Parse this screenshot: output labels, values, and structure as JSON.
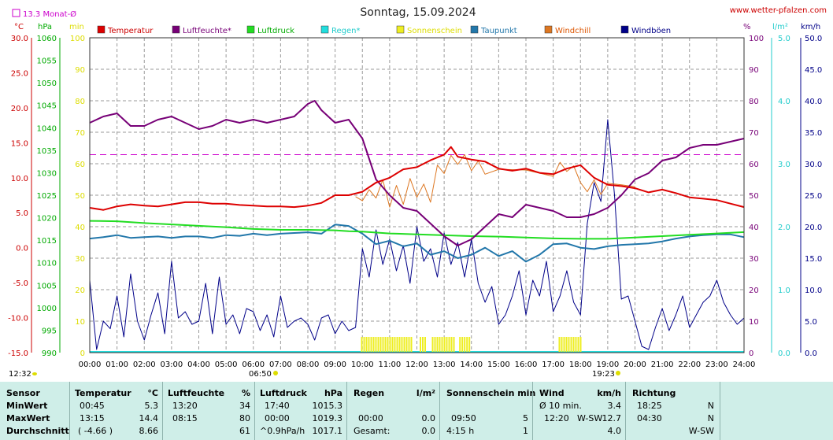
{
  "title": "Sonntag, 15.09.2024",
  "site": "www.wetter-pfalzen.com",
  "avg_label": "13.3 Monat-Ø",
  "units": {
    "temp": "°C",
    "pressure": "hPa",
    "sunshine": "min",
    "humidity": "%",
    "rain": "l/m²",
    "wind": "km/h"
  },
  "left_axes": {
    "temp": [
      "30.0",
      "25.0",
      "20.0",
      "15.0",
      "10.0",
      "5.0",
      "0.0",
      "-5.0",
      "-10.0",
      "-15.0"
    ],
    "pressure": [
      "1060",
      "1055",
      "1050",
      "1045",
      "1040",
      "1035",
      "1030",
      "1025",
      "1020",
      "1015",
      "1010",
      "1005",
      "1000",
      "995",
      "990"
    ],
    "sunshine": [
      "100",
      "90",
      "80",
      "70",
      "60",
      "50",
      "40",
      "30",
      "20",
      "10",
      "0"
    ]
  },
  "right_axes": {
    "humidity": [
      "100",
      "90",
      "80",
      "70",
      "60",
      "50",
      "40",
      "30",
      "20",
      "10",
      "0"
    ],
    "rain": [
      "5.0",
      "4.0",
      "3.0",
      "2.0",
      "1.0",
      "0.0"
    ],
    "wind": [
      "50.0",
      "45.0",
      "40.0",
      "35.0",
      "30.0",
      "25.0",
      "20.0",
      "15.0",
      "10.0",
      "5.0",
      "0.0"
    ]
  },
  "x_ticks": [
    "00:00",
    "01:00",
    "02:00",
    "03:00",
    "04:00",
    "05:00",
    "06:00",
    "07:00",
    "08:00",
    "09:00",
    "10:00",
    "11:00",
    "12:00",
    "13:00",
    "14:00",
    "15:00",
    "16:00",
    "17:00",
    "18:00",
    "19:00",
    "20:00",
    "21:00",
    "22:00",
    "23:00",
    "24:00"
  ],
  "sun_times": {
    "moonset": "12:32",
    "sunrise": "06:50",
    "sunset": "19:23"
  },
  "legend": [
    {
      "label": "Temperatur",
      "color": "#dd0000",
      "text_color": "#cc0000"
    },
    {
      "label": "Luftfeuchte*",
      "color": "#770077",
      "text_color": "#770077"
    },
    {
      "label": "Luftdruck",
      "color": "#22dd22",
      "text_color": "#00aa00"
    },
    {
      "label": "Regen*",
      "color": "#22dddd",
      "text_color": "#22cccc"
    },
    {
      "label": "Sonnenschein",
      "color": "#eeee22",
      "text_color": "#dddd00"
    },
    {
      "label": "Taupunkt",
      "color": "#2277aa",
      "text_color": "#2277aa"
    },
    {
      "label": "Windchill",
      "color": "#dd7722",
      "text_color": "#dd5500"
    },
    {
      "label": "Windböen",
      "color": "#000088",
      "text_color": "#000088"
    }
  ],
  "chart_data": {
    "type": "line",
    "x_unit": "hour",
    "x_range": [
      0,
      24
    ],
    "month_avg_temp": 13.3,
    "temp_axis": [
      -15,
      30
    ],
    "pressure_axis": [
      990,
      1060
    ],
    "humidity_axis": [
      0,
      100
    ],
    "wind_axis": [
      0,
      50
    ],
    "series": [
      {
        "name": "Temperatur",
        "unit": "°C",
        "color": "#dd0000",
        "x": [
          0,
          0.5,
          1,
          1.5,
          2,
          2.5,
          3,
          3.5,
          4,
          4.5,
          5,
          5.5,
          6,
          6.5,
          7,
          7.5,
          8,
          8.5,
          9,
          9.5,
          10,
          10.5,
          11,
          11.5,
          12,
          12.5,
          13,
          13.25,
          13.5,
          14,
          14.5,
          15,
          15.5,
          16,
          16.5,
          17,
          17.5,
          18,
          18.5,
          19,
          19.5,
          20,
          20.5,
          21,
          21.5,
          22,
          22.5,
          23,
          23.5,
          24
        ],
        "values": [
          5.7,
          5.4,
          5.9,
          6.2,
          6.0,
          5.9,
          6.2,
          6.5,
          6.5,
          6.3,
          6.3,
          6.1,
          6.0,
          5.9,
          5.9,
          5.8,
          6.0,
          6.4,
          7.5,
          7.5,
          8.0,
          9.3,
          10.0,
          11.2,
          11.5,
          12.5,
          13.3,
          14.4,
          13.0,
          12.6,
          12.3,
          11.3,
          11.0,
          11.3,
          10.7,
          10.5,
          11.3,
          11.8,
          10.0,
          9.0,
          8.8,
          8.5,
          7.9,
          8.3,
          7.8,
          7.2,
          7.0,
          6.8,
          6.3,
          5.8
        ]
      },
      {
        "name": "Luftfeuchte*",
        "unit": "%",
        "color": "#770077",
        "x": [
          0,
          0.5,
          1,
          1.5,
          2,
          2.5,
          3,
          3.5,
          4,
          4.5,
          5,
          5.5,
          6,
          6.5,
          7,
          7.5,
          8,
          8.25,
          8.5,
          9,
          9.5,
          10,
          10.5,
          11,
          11.5,
          12,
          12.5,
          13,
          13.5,
          14,
          14.5,
          15,
          15.5,
          16,
          16.5,
          17,
          17.5,
          18,
          18.5,
          19,
          19.5,
          20,
          20.5,
          21,
          21.5,
          22,
          22.5,
          23,
          23.5,
          24
        ],
        "values": [
          73,
          75,
          76,
          72,
          72,
          74,
          75,
          73,
          71,
          72,
          74,
          73,
          74,
          73,
          74,
          75,
          79,
          80,
          77,
          73,
          74,
          68,
          55,
          50,
          46,
          45,
          41,
          37,
          34,
          36,
          40,
          44,
          43,
          47,
          46,
          45,
          43,
          43,
          44,
          46,
          50,
          55,
          57,
          61,
          62,
          65,
          66,
          66,
          67,
          68
        ]
      },
      {
        "name": "Luftdruck",
        "unit": "hPa",
        "color": "#22dd22",
        "x": [
          0,
          1,
          2,
          3,
          4,
          5,
          6,
          7,
          8,
          9,
          9.5,
          10,
          11,
          12,
          13,
          14,
          15,
          16,
          17,
          18,
          19,
          20,
          21,
          22,
          23,
          24
        ],
        "values": [
          1019.3,
          1019.2,
          1018.8,
          1018.5,
          1018.2,
          1017.9,
          1017.5,
          1017.3,
          1017.3,
          1017.2,
          1017.0,
          1016.9,
          1016.5,
          1016.3,
          1016.1,
          1015.9,
          1015.8,
          1015.6,
          1015.4,
          1015.3,
          1015.3,
          1015.6,
          1015.9,
          1016.2,
          1016.5,
          1016.8
        ]
      },
      {
        "name": "Taupunkt",
        "unit": "°C",
        "color": "#2277aa",
        "x": [
          0,
          0.5,
          1,
          1.5,
          2,
          2.5,
          3,
          3.5,
          4,
          4.5,
          5,
          5.5,
          6,
          6.5,
          7,
          7.5,
          8,
          8.5,
          9,
          9.5,
          10,
          10.5,
          11,
          11.5,
          12,
          12.5,
          13,
          13.5,
          14,
          14.5,
          15,
          15.5,
          16,
          16.5,
          17,
          17.5,
          18,
          18.5,
          19,
          19.5,
          20,
          20.5,
          21,
          21.5,
          22,
          22.5,
          23,
          23.5,
          24
        ],
        "values": [
          1.3,
          1.5,
          1.8,
          1.4,
          1.5,
          1.6,
          1.4,
          1.6,
          1.6,
          1.4,
          1.8,
          1.7,
          2.0,
          1.8,
          2.0,
          2.1,
          2.2,
          2.0,
          3.3,
          3.1,
          2.0,
          0.5,
          1.0,
          0.2,
          0.6,
          -1.0,
          -0.5,
          -1.5,
          -1.0,
          0.0,
          -1.2,
          -0.5,
          -2.0,
          -1.0,
          0.5,
          0.6,
          0.0,
          -0.2,
          0.2,
          0.4,
          0.5,
          0.6,
          0.9,
          1.3,
          1.6,
          1.8,
          1.9,
          1.9,
          1.5
        ]
      },
      {
        "name": "Windchill",
        "unit": "°C",
        "color": "#dd7722",
        "x": [
          9.75,
          10,
          10.25,
          10.5,
          10.75,
          11,
          11.25,
          11.5,
          11.75,
          12,
          12.25,
          12.5,
          12.75,
          13,
          13.25,
          13.5,
          13.75,
          14,
          14.25,
          14.5,
          15,
          16,
          17,
          17.25,
          17.5,
          17.75,
          18,
          18.25,
          18.5,
          18.75,
          19,
          19.5,
          20
        ],
        "values": [
          7.3,
          6.7,
          8.3,
          7.1,
          9.7,
          5.8,
          8.9,
          6.2,
          9.9,
          7.2,
          9.1,
          6.5,
          11.8,
          10.6,
          13.2,
          11.9,
          13.3,
          11.0,
          12.4,
          10.5,
          11.2,
          11.1,
          10.2,
          12.2,
          10.9,
          11.7,
          9.3,
          8.0,
          9.7,
          7.6,
          9.2,
          9.0,
          8.7
        ]
      },
      {
        "name": "Windböen",
        "unit": "km/h",
        "color": "#000088",
        "x": [
          0,
          0.25,
          0.5,
          0.75,
          1,
          1.25,
          1.5,
          1.75,
          2,
          2.25,
          2.5,
          2.75,
          3,
          3.25,
          3.5,
          3.75,
          4,
          4.25,
          4.5,
          4.75,
          5,
          5.25,
          5.5,
          5.75,
          6,
          6.25,
          6.5,
          6.75,
          7,
          7.25,
          7.5,
          7.75,
          8,
          8.25,
          8.5,
          8.75,
          9,
          9.25,
          9.5,
          9.75,
          10,
          10.25,
          10.5,
          10.75,
          11,
          11.25,
          11.5,
          11.75,
          12,
          12.25,
          12.5,
          12.75,
          13,
          13.25,
          13.5,
          13.75,
          14,
          14.25,
          14.5,
          14.75,
          15,
          15.25,
          15.5,
          15.75,
          16,
          16.25,
          16.5,
          16.75,
          17,
          17.25,
          17.5,
          17.75,
          18,
          18.25,
          18.5,
          18.75,
          19,
          19.25,
          19.5,
          19.75,
          20,
          20.25,
          20.5,
          20.75,
          21,
          21.25,
          21.5,
          21.75,
          22,
          22.25,
          22.5,
          22.75,
          23,
          23.25,
          23.5,
          23.75,
          24
        ],
        "values": [
          11.5,
          0.5,
          5.0,
          3.8,
          9.0,
          2.5,
          12.5,
          5.0,
          2.0,
          6.0,
          9.5,
          3.0,
          14.5,
          5.5,
          6.5,
          4.5,
          5.0,
          11.0,
          3.0,
          12.0,
          4.5,
          6.0,
          3.0,
          7.0,
          6.5,
          3.5,
          6.0,
          2.5,
          9.0,
          4.0,
          5.0,
          5.5,
          4.5,
          2.0,
          5.5,
          6.0,
          3.0,
          5.0,
          3.5,
          4.0,
          16.5,
          12.0,
          19.5,
          14.0,
          18.0,
          13.0,
          17.0,
          11.0,
          20.0,
          14.5,
          16.5,
          12.0,
          19.0,
          14.0,
          17.5,
          12.0,
          18.0,
          11.0,
          8.0,
          10.5,
          4.5,
          6.0,
          9.0,
          13.0,
          6.0,
          11.5,
          9.0,
          14.5,
          6.5,
          9.0,
          13.0,
          8.0,
          6.0,
          20.5,
          27.0,
          24.0,
          37.0,
          25.0,
          8.5,
          9.0,
          5.0,
          1.0,
          0.5,
          4.0,
          7.0,
          3.5,
          6.0,
          9.0,
          4.0,
          6.0,
          8.0,
          9.0,
          11.5,
          8.0,
          6.0,
          4.5,
          5.5
        ]
      },
      {
        "name": "Sonnenschein",
        "unit": "min",
        "color": "#eeee22",
        "intervals": [
          [
            9.95,
            11.8
          ],
          [
            12.1,
            12.35
          ],
          [
            12.55,
            13.4
          ],
          [
            13.55,
            13.95
          ],
          [
            17.2,
            18.05
          ]
        ],
        "value": 5
      }
    ]
  },
  "stats": {
    "sensor": {
      "header": "Sensor",
      "rows": [
        "MinWert",
        "MaxWert",
        "Durchschnitt"
      ]
    },
    "temperature": {
      "header": "Temperatur",
      "unit": "°C",
      "rows": [
        [
          "00:45",
          "5.3"
        ],
        [
          "13:15",
          "14.4"
        ],
        [
          "( -4.66 )",
          "8.66"
        ]
      ]
    },
    "humidity": {
      "header": "Luftfeuchte",
      "unit": "%",
      "rows": [
        [
          "13:20",
          "34"
        ],
        [
          "08:15",
          "80"
        ],
        [
          "",
          "61"
        ]
      ]
    },
    "pressure": {
      "header": "Luftdruck",
      "unit": "hPa",
      "rows": [
        [
          "17:40",
          "1015.3"
        ],
        [
          "00:00",
          "1019.3"
        ],
        [
          "^0.9hPa/h",
          "1017.1"
        ]
      ]
    },
    "rain": {
      "header": "Regen",
      "unit": "l/m²",
      "rows": [
        [
          "",
          ""
        ],
        [
          "00:00",
          "0.0"
        ],
        [
          "Gesamt:",
          "0.0"
        ]
      ]
    },
    "sunshine": {
      "header": "Sonnenschein min",
      "unit": "",
      "rows": [
        [
          "",
          ""
        ],
        [
          "09:50",
          "5"
        ],
        [
          "4:15 h",
          "1"
        ]
      ]
    },
    "wind": {
      "header": "Wind",
      "unit": "km/h",
      "rows": [
        [
          "Ø 10 min.",
          "",
          "3.4"
        ],
        [
          "12:20",
          "W-SW",
          "12.7"
        ],
        [
          "",
          "",
          "4.0"
        ]
      ]
    },
    "direction": {
      "header": "Richtung",
      "rows": [
        [
          "18:25",
          "N"
        ],
        [
          "04:30",
          "N"
        ],
        [
          "",
          "W-SW"
        ]
      ]
    }
  }
}
